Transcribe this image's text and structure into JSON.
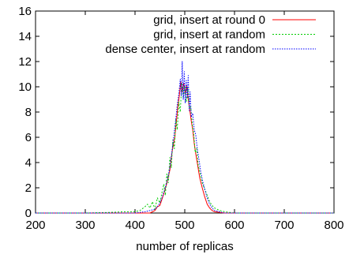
{
  "chart_data": {
    "type": "line",
    "title": "",
    "xlabel": "number of replicas",
    "ylabel": "",
    "xlim": [
      200,
      800
    ],
    "ylim": [
      0,
      16
    ],
    "xticks": [
      "200",
      "300",
      "400",
      "500",
      "600",
      "700",
      "800"
    ],
    "yticks": [
      "0",
      "2",
      "4",
      "6",
      "8",
      "10",
      "12",
      "14",
      "16"
    ],
    "grid": false,
    "legend_position": "top-right",
    "series": [
      {
        "name": "grid, insert at round 0",
        "color": "#ff0000",
        "dash": "solid",
        "x": [
          200,
          430,
          440,
          445,
          450,
          455,
          460,
          465,
          470,
          475,
          480,
          483,
          486,
          489,
          492,
          495,
          498,
          501,
          504,
          507,
          510,
          513,
          516,
          519,
          522,
          525,
          530,
          535,
          540,
          545,
          550,
          555,
          560,
          570,
          580,
          800
        ],
        "y": [
          0,
          0,
          0.2,
          0.5,
          0.6,
          1.2,
          1.8,
          2.5,
          3.4,
          5.0,
          6.0,
          7.2,
          8.4,
          9.3,
          10.4,
          9.6,
          10.3,
          9.4,
          10.1,
          9.0,
          8.2,
          7.3,
          6.6,
          5.5,
          4.7,
          4.0,
          2.8,
          2.0,
          1.3,
          0.7,
          0.4,
          0.2,
          0.1,
          0.05,
          0,
          0
        ]
      },
      {
        "name": "grid, insert at random",
        "color": "#00cc00",
        "dash": "2,2",
        "x": [
          200,
          300,
          350,
          380,
          400,
          410,
          420,
          425,
          430,
          435,
          440,
          445,
          450,
          455,
          458,
          461,
          464,
          467,
          470,
          473,
          476,
          479,
          482,
          485,
          488,
          491,
          494,
          497,
          500,
          503,
          506,
          509,
          512,
          515,
          518,
          521,
          524,
          527,
          530,
          535,
          540,
          545,
          550,
          555,
          560,
          570,
          580,
          600,
          800
        ],
        "y": [
          0,
          0,
          0.05,
          0.1,
          0.1,
          0.2,
          0.5,
          0.7,
          0.4,
          0.9,
          0.3,
          1.2,
          0.8,
          1.8,
          2.3,
          1.4,
          3.1,
          2.4,
          4.4,
          3.6,
          5.8,
          5.1,
          7.4,
          6.6,
          8.8,
          8.0,
          10.3,
          9.1,
          10.1,
          8.8,
          9.9,
          8.3,
          8.4,
          7.0,
          6.3,
          4.8,
          5.1,
          3.8,
          3.3,
          2.4,
          1.9,
          1.4,
          0.9,
          0.6,
          0.4,
          0.2,
          0.1,
          0,
          0
        ]
      },
      {
        "name": "dense center, insert at random",
        "color": "#0000ff",
        "dash": "1.5,1.5",
        "x": [
          200,
          400,
          420,
          430,
          440,
          445,
          450,
          455,
          460,
          465,
          470,
          474,
          478,
          482,
          485,
          488,
          491,
          493,
          495,
          497,
          499,
          501,
          503,
          505,
          507,
          509,
          511,
          513,
          516,
          519,
          522,
          525,
          528,
          532,
          536,
          540,
          545,
          550,
          555,
          560,
          570,
          580,
          800
        ],
        "y": [
          0,
          0,
          0.1,
          0.2,
          0.3,
          0.5,
          0.8,
          1.3,
          1.9,
          2.6,
          3.6,
          4.8,
          6.1,
          7.5,
          8.6,
          9.4,
          10.6,
          9.3,
          12.0,
          9.0,
          11.2,
          8.7,
          10.5,
          9.1,
          10.9,
          8.1,
          9.6,
          7.6,
          7.9,
          6.6,
          6.2,
          5.1,
          4.4,
          3.3,
          2.5,
          1.9,
          1.2,
          0.7,
          0.4,
          0.2,
          0.1,
          0,
          0
        ]
      }
    ]
  }
}
